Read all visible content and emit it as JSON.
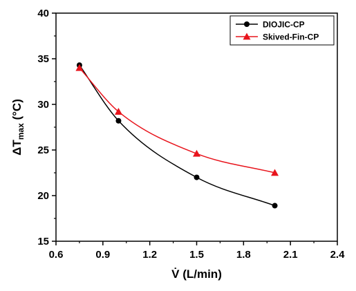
{
  "chart_data": {
    "type": "line",
    "xlabel": "V̇ (L/min)",
    "ylabel": "ΔTmax (°C)",
    "ylabel_parts": {
      "prefix": "ΔT",
      "subscript": "max",
      "suffix": " (°C)"
    },
    "xlim": [
      0.6,
      2.4
    ],
    "ylim": [
      15,
      40
    ],
    "x_ticks": [
      "0.6",
      "0.9",
      "1.2",
      "1.5",
      "1.8",
      "2.1",
      "2.4"
    ],
    "y_ticks": [
      "15",
      "20",
      "25",
      "30",
      "35",
      "40"
    ],
    "grid": false,
    "legend_position": "top-right",
    "series": [
      {
        "name": "DIOJIC-CP",
        "color": "#000000",
        "marker": "circle",
        "x": [
          0.75,
          1.0,
          1.5,
          2.0
        ],
        "y": [
          34.3,
          28.2,
          22.0,
          18.9
        ]
      },
      {
        "name": "Skived-Fin-CP",
        "color": "#e8141c",
        "marker": "triangle",
        "x": [
          0.75,
          1.0,
          1.5,
          2.0
        ],
        "y": [
          34.0,
          29.2,
          24.6,
          22.5
        ]
      }
    ]
  }
}
